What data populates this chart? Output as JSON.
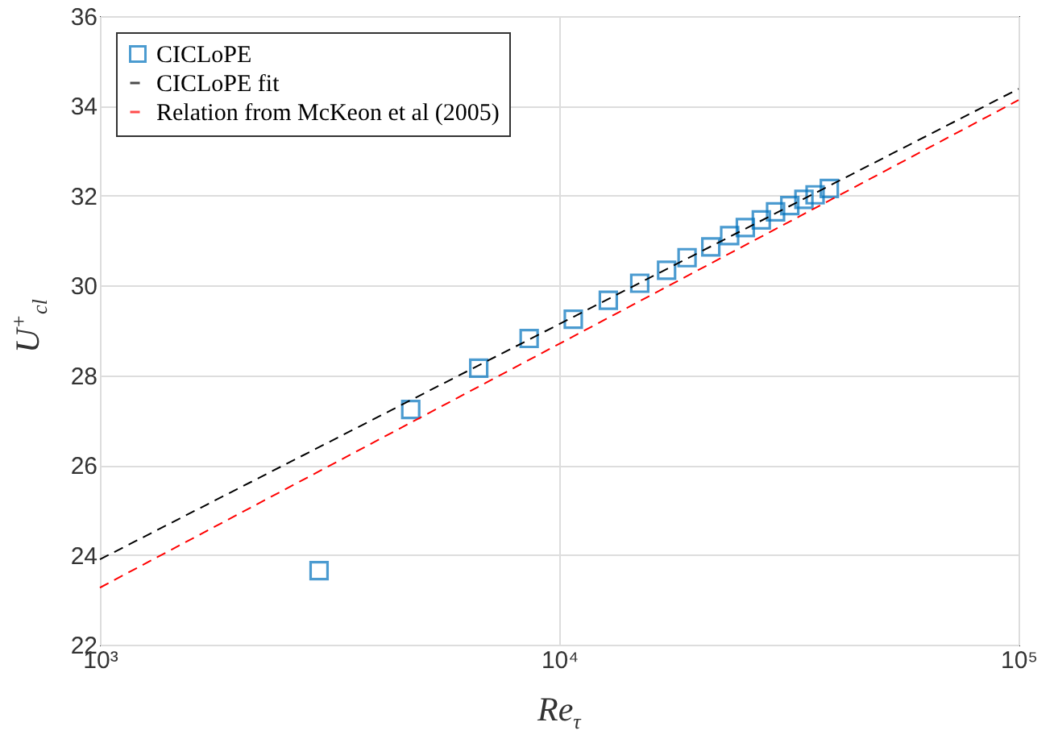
{
  "chart_data": {
    "type": "scatter",
    "xlabel": "Re$_{τ}$",
    "ylabel": "U$^{+}$$_{cl}$",
    "log": "x",
    "grid": true,
    "legend": "top left",
    "xlim": [
      1000,
      100000
    ],
    "xticks": [
      {
        "value": 1000,
        "label": "10³"
      },
      {
        "value": 10000,
        "label": "10⁴"
      },
      {
        "value": 100000,
        "label": "10⁵"
      }
    ],
    "ylim": [
      22,
      36
    ],
    "yticks": [
      22,
      24,
      26,
      28,
      30,
      32,
      34,
      36
    ],
    "series": [
      {
        "name": "CICLoPE",
        "marker": "square",
        "color": "#0072bd",
        "x": [
          3000,
          4750,
          6680,
          8600,
          10730,
          12790,
          14970,
          17130,
          18980,
          21380,
          23500,
          25420,
          27540,
          29580,
          31770,
          34100,
          36060,
          38730
        ],
        "values": [
          23.65,
          27.24,
          28.16,
          28.82,
          29.25,
          29.67,
          30.05,
          30.34,
          30.62,
          30.86,
          31.11,
          31.29,
          31.46,
          31.64,
          31.78,
          31.92,
          32.02,
          32.16
        ]
      },
      {
        "name": "CICLoPE fit",
        "type": "line",
        "line_style": "dashed",
        "color": "#000000",
        "x": [
          1000,
          100000
        ],
        "values": [
          23.9,
          34.38
        ]
      },
      {
        "name": "Relation from McKeon et al (2005)",
        "type": "line",
        "line_style": "dashed",
        "color": "#ff0000",
        "x": [
          1000,
          100000
        ],
        "values": [
          23.27,
          34.13
        ]
      }
    ]
  }
}
